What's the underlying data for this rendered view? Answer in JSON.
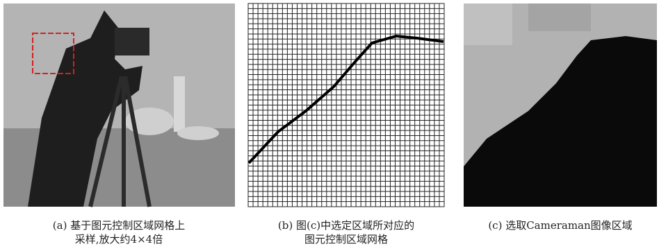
{
  "panels": [
    {
      "caption_lines": [
        "(a) 基于图元控制区域网格上",
        "采样,放大约4×4倍"
      ]
    },
    {
      "caption_lines": [
        "(b) 图(c)中选定区域所对应的",
        "图元控制区域网格"
      ]
    },
    {
      "caption_lines": [
        "(c) 选取Cameraman图像区域"
      ]
    }
  ]
}
